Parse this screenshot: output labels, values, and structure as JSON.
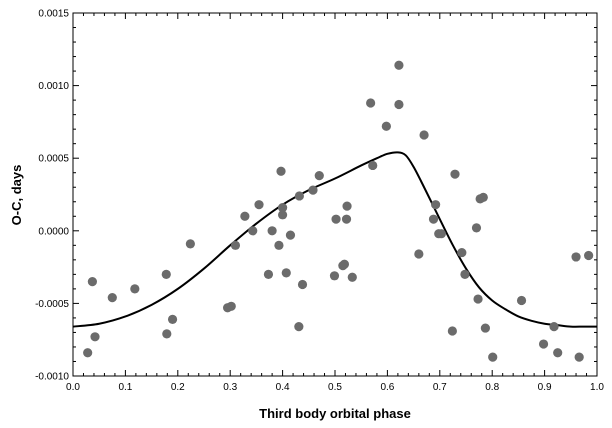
{
  "chart_data": {
    "type": "scatter",
    "title": "",
    "xlabel": "Third body orbital phase",
    "ylabel": "O-C, days",
    "xlim": [
      0.0,
      1.0
    ],
    "ylim": [
      -0.001,
      0.0015
    ],
    "x_ticks": [
      "0.0",
      "0.1",
      "0.2",
      "0.3",
      "0.4",
      "0.5",
      "0.6",
      "0.7",
      "0.8",
      "0.9",
      "1.0"
    ],
    "y_ticks": [
      "-0.0010",
      "-0.0005",
      "0.0000",
      "0.0005",
      "0.0010",
      "0.0015"
    ],
    "grid": false,
    "legend": "none",
    "marker_color": "#6b6b6b",
    "line_color": "#000000",
    "points": {
      "x": [
        0.028,
        0.037,
        0.042,
        0.075,
        0.118,
        0.178,
        0.179,
        0.19,
        0.224,
        0.295,
        0.302,
        0.31,
        0.328,
        0.343,
        0.355,
        0.373,
        0.38,
        0.393,
        0.397,
        0.4,
        0.4,
        0.407,
        0.415,
        0.431,
        0.432,
        0.438,
        0.458,
        0.47,
        0.499,
        0.502,
        0.515,
        0.518,
        0.522,
        0.523,
        0.533,
        0.568,
        0.572,
        0.598,
        0.622,
        0.622,
        0.66,
        0.67,
        0.688,
        0.692,
        0.698,
        0.703,
        0.724,
        0.729,
        0.742,
        0.748,
        0.77,
        0.773,
        0.777,
        0.783,
        0.787,
        0.801,
        0.856,
        0.898,
        0.918,
        0.925,
        0.96,
        0.966,
        0.984
      ],
      "y": [
        -0.00084,
        -0.00035,
        -0.00073,
        -0.00046,
        -0.0004,
        -0.0003,
        -0.00071,
        -0.00061,
        -9e-05,
        -0.00053,
        -0.00052,
        -0.0001,
        0.0001,
        0.0,
        0.00018,
        -0.0003,
        0.0,
        -0.0001,
        0.00041,
        0.00016,
        0.00011,
        -0.00029,
        -3e-05,
        -0.00066,
        0.00024,
        -0.00037,
        0.00028,
        0.00038,
        -0.00031,
        8e-05,
        -0.00024,
        -0.00023,
        8e-05,
        0.00017,
        -0.00032,
        0.00088,
        0.00045,
        0.00072,
        0.00114,
        0.00087,
        -0.00016,
        0.00066,
        8e-05,
        0.00018,
        -2e-05,
        -2e-05,
        -0.00069,
        0.00039,
        -0.00015,
        -0.0003,
        2e-05,
        -0.00047,
        0.00022,
        0.00023,
        -0.00067,
        -0.00087,
        -0.00048,
        -0.00078,
        -0.00066,
        -0.00084,
        -0.00018,
        -0.00087,
        -0.00017
      ]
    },
    "model_curve": {
      "x": [
        0.0,
        0.05,
        0.1,
        0.15,
        0.2,
        0.25,
        0.3,
        0.35,
        0.4,
        0.45,
        0.5,
        0.55,
        0.58,
        0.6,
        0.62,
        0.635,
        0.65,
        0.67,
        0.7,
        0.725,
        0.75,
        0.775,
        0.8,
        0.825,
        0.85,
        0.875,
        0.9,
        0.925,
        0.95,
        0.975,
        1.0
      ],
      "y": [
        -0.00066,
        -0.00064,
        -0.00059,
        -0.00051,
        -0.0004,
        -0.00026,
        -0.0001,
        5e-05,
        0.00018,
        0.00028,
        0.00036,
        0.00045,
        0.0005,
        0.00053,
        0.00054,
        0.00052,
        0.00044,
        0.0003,
        8e-05,
        -0.0001,
        -0.00026,
        -0.00039,
        -0.00048,
        -0.00054,
        -0.00059,
        -0.00062,
        -0.00064,
        -0.00065,
        -0.00066,
        -0.00066,
        -0.00066
      ]
    }
  }
}
